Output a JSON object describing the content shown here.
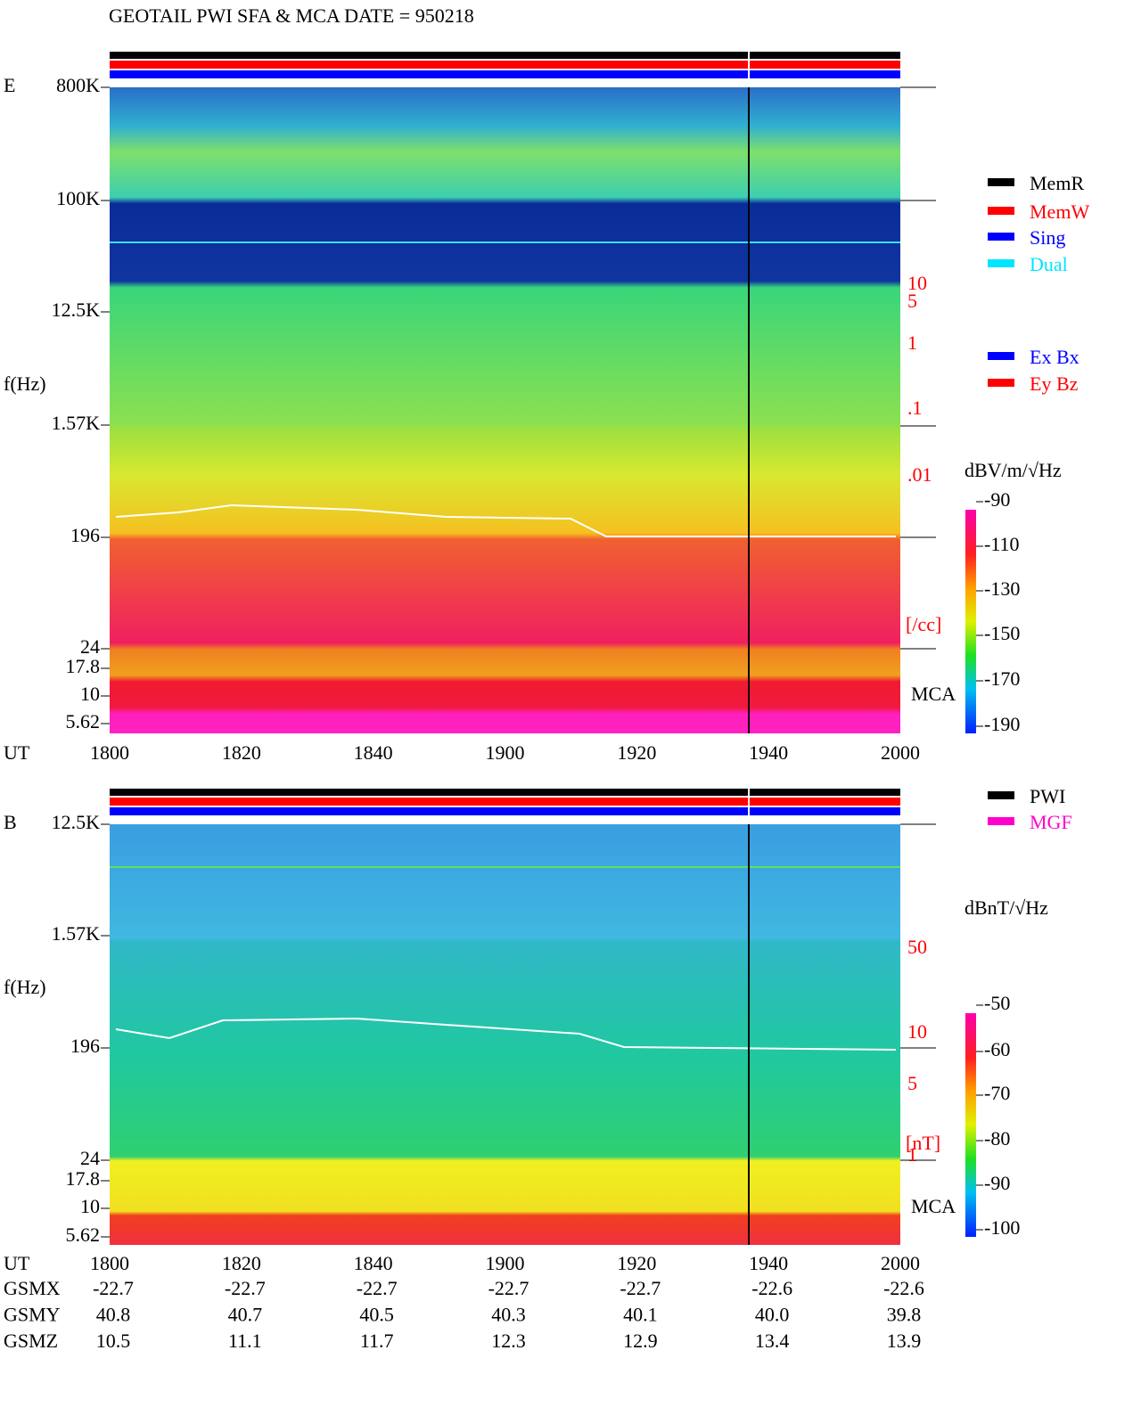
{
  "title": "GEOTAIL  PWI SFA & MCA   DATE = 950218",
  "panels": [
    {
      "label": "E",
      "freq_label": "f(Hz)",
      "freq_ticks": [
        "800K",
        "100K",
        "12.5K",
        "1.57K",
        "196",
        "24",
        "17.8",
        "10",
        "5.62"
      ],
      "right_ticks": [
        "10",
        "5",
        "1",
        ".1",
        ".01"
      ],
      "right_unit": "[/cc]",
      "mca": "MCA",
      "unit": "dBV/m/√Hz",
      "colorbar_ticks": [
        "-90",
        "-110",
        "-130",
        "-150",
        "-170",
        "-190"
      ],
      "time_label": "UT",
      "time_ticks": [
        "1800",
        "1820",
        "1840",
        "1900",
        "1920",
        "1940",
        "2000"
      ]
    },
    {
      "label": "B",
      "freq_label": "f(Hz)",
      "freq_ticks": [
        "12.5K",
        "1.57K",
        "196",
        "24",
        "17.8",
        "10",
        "5.62"
      ],
      "right_ticks": [
        "50",
        "10",
        "5",
        "1"
      ],
      "right_unit": "[nT]",
      "mca": "MCA",
      "unit": "dBnT/√Hz",
      "colorbar_ticks": [
        "-50",
        "-60",
        "-70",
        "-80",
        "-90",
        "-100"
      ],
      "time_label": "UT",
      "time_ticks": [
        "1800",
        "1820",
        "1840",
        "1900",
        "1920",
        "1940",
        "2000"
      ]
    }
  ],
  "legend_modes": [
    {
      "name": "MemR",
      "color": "#000000"
    },
    {
      "name": "MemW",
      "color": "#ff0000"
    },
    {
      "name": "Sing",
      "color": "#0000ff"
    },
    {
      "name": "Dual",
      "color": "#00e5ff"
    }
  ],
  "legend_components": [
    {
      "name": "Ex Bx",
      "color": "#0000ff"
    },
    {
      "name": "Ey Bz",
      "color": "#ff0000"
    }
  ],
  "legend_sources": [
    {
      "name": "PWI",
      "color": "#000000"
    },
    {
      "name": "MGF",
      "color": "#ff00cc"
    }
  ],
  "orbit": [
    {
      "name": "GSMX",
      "values": [
        "-22.7",
        "-22.7",
        "-22.7",
        "-22.7",
        "-22.7",
        "-22.6",
        "-22.6"
      ]
    },
    {
      "name": "GSMY",
      "values": [
        "40.8",
        "40.7",
        "40.5",
        "40.3",
        "40.1",
        "40.0",
        "39.8"
      ]
    },
    {
      "name": "GSMZ",
      "values": [
        "10.5",
        "11.1",
        "11.7",
        "12.3",
        "12.9",
        "13.4",
        "13.9"
      ]
    }
  ]
}
